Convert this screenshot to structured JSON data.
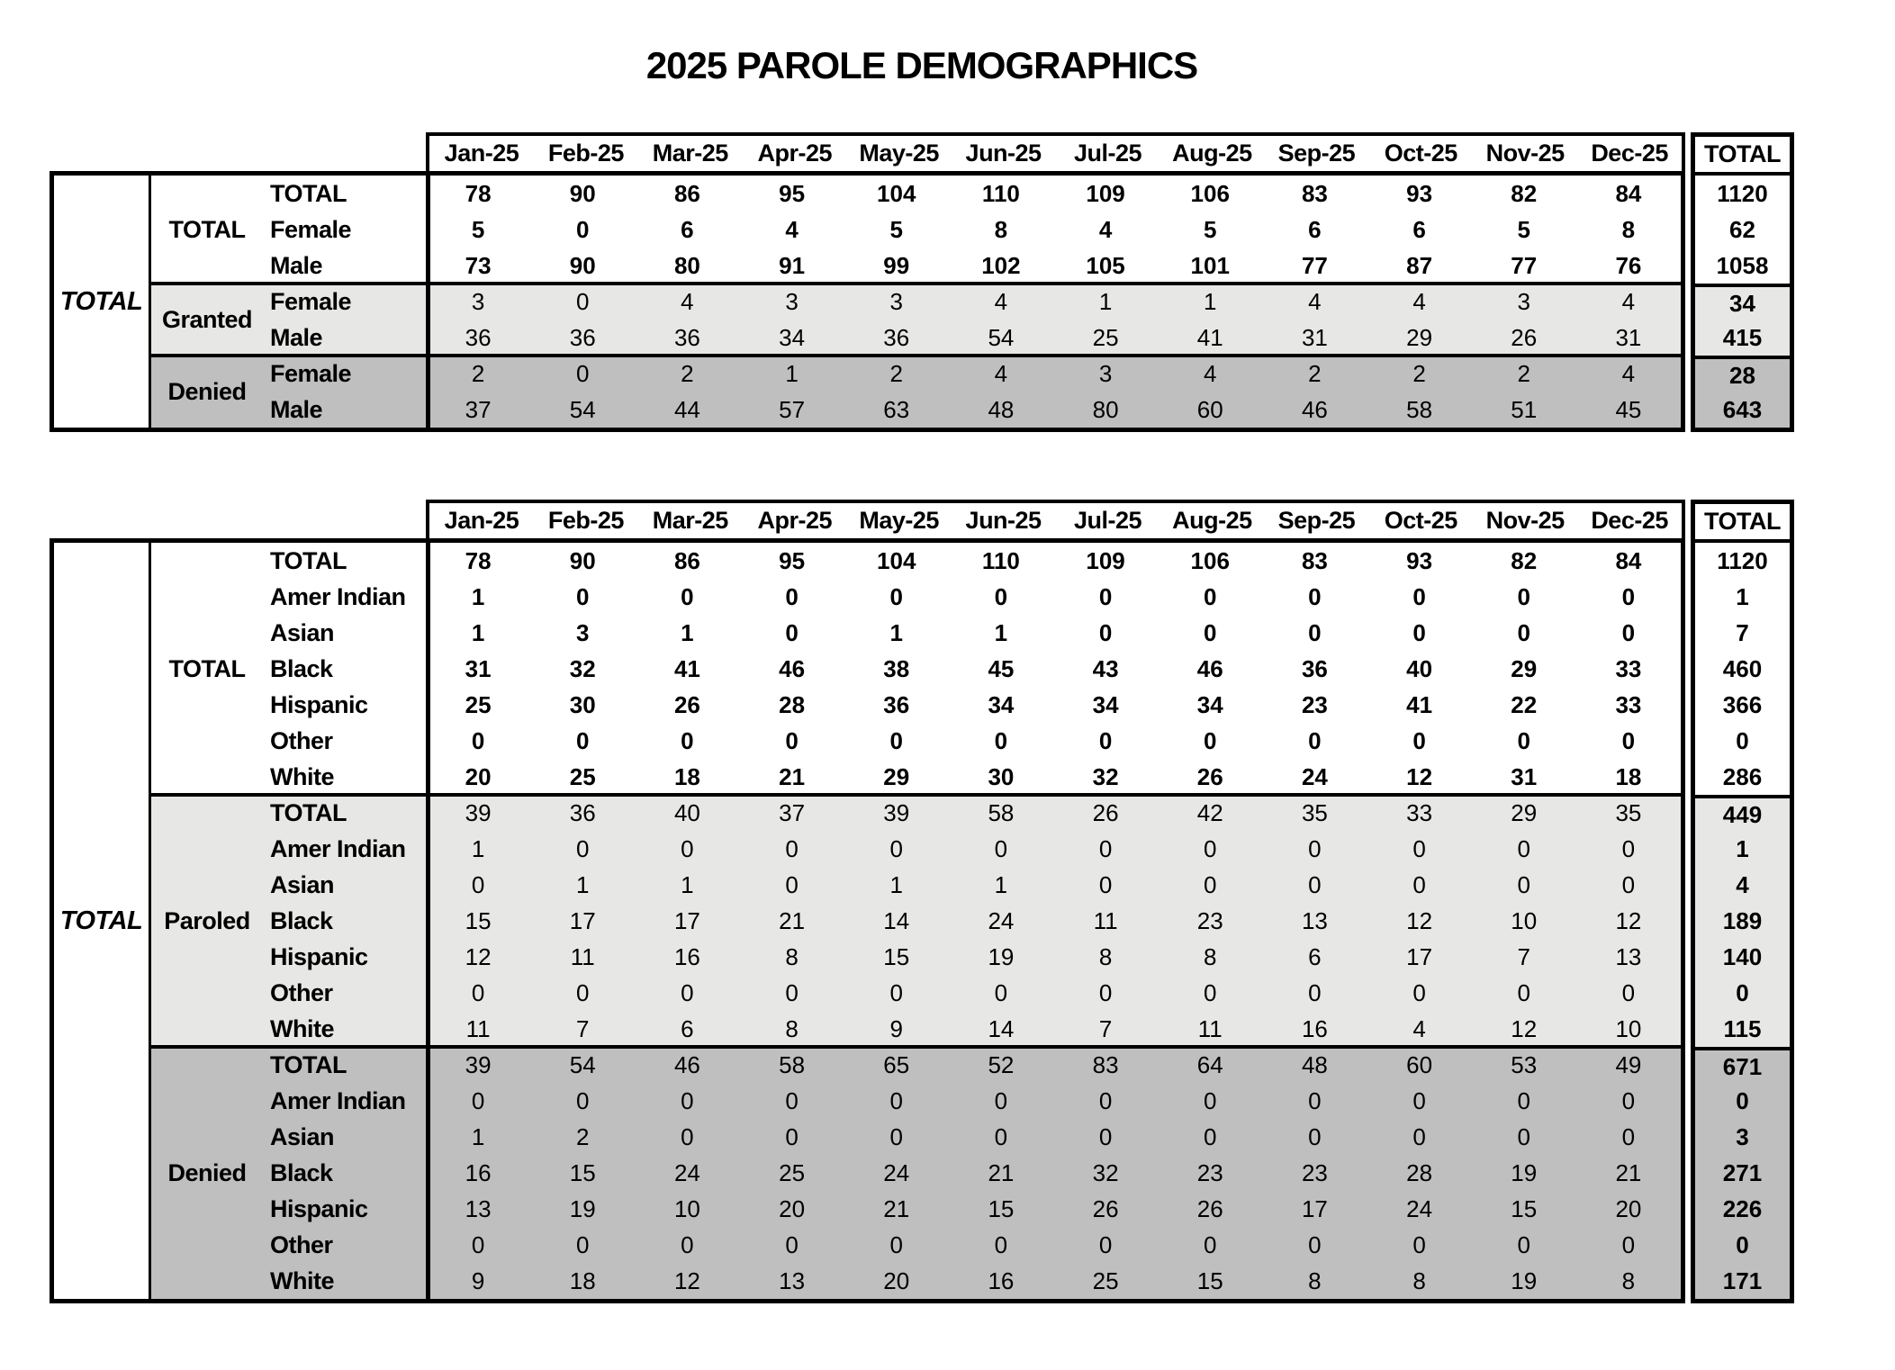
{
  "title": "2025 PAROLE DEMOGRAPHICS",
  "total_header": "TOTAL",
  "months": [
    "Jan-25",
    "Feb-25",
    "Mar-25",
    "Apr-25",
    "May-25",
    "Jun-25",
    "Jul-25",
    "Aug-25",
    "Sep-25",
    "Oct-25",
    "Nov-25",
    "Dec-25"
  ],
  "colors": {
    "page_bg": "#ffffff",
    "text": "#000000",
    "border": "#000000",
    "shade_light": "#e7e7e5",
    "shade_dark": "#bfbfbf"
  },
  "table1": {
    "side_label": "TOTAL",
    "groups": [
      {
        "label": "TOTAL",
        "shade": "none",
        "bold": true,
        "rows": [
          {
            "label": "TOTAL",
            "values": [
              78,
              90,
              86,
              95,
              104,
              110,
              109,
              106,
              83,
              93,
              82,
              84
            ],
            "total": 1120
          },
          {
            "label": "Female",
            "values": [
              5,
              0,
              6,
              4,
              5,
              8,
              4,
              5,
              6,
              6,
              5,
              8
            ],
            "total": 62
          },
          {
            "label": "Male",
            "values": [
              73,
              90,
              80,
              91,
              99,
              102,
              105,
              101,
              77,
              87,
              77,
              76
            ],
            "total": 1058
          }
        ]
      },
      {
        "label": "Granted",
        "shade": "light",
        "bold": false,
        "rows": [
          {
            "label": "Female",
            "values": [
              3,
              0,
              4,
              3,
              3,
              4,
              1,
              1,
              4,
              4,
              3,
              4
            ],
            "total": 34
          },
          {
            "label": "Male",
            "values": [
              36,
              36,
              36,
              34,
              36,
              54,
              25,
              41,
              31,
              29,
              26,
              31
            ],
            "total": 415
          }
        ]
      },
      {
        "label": "Denied",
        "shade": "dark",
        "bold": false,
        "rows": [
          {
            "label": "Female",
            "values": [
              2,
              0,
              2,
              1,
              2,
              4,
              3,
              4,
              2,
              2,
              2,
              4
            ],
            "total": 28
          },
          {
            "label": "Male",
            "values": [
              37,
              54,
              44,
              57,
              63,
              48,
              80,
              60,
              46,
              58,
              51,
              45
            ],
            "total": 643
          }
        ]
      }
    ]
  },
  "table2": {
    "side_label": "TOTAL",
    "groups": [
      {
        "label": "TOTAL",
        "shade": "none",
        "bold": true,
        "rows": [
          {
            "label": "TOTAL",
            "values": [
              78,
              90,
              86,
              95,
              104,
              110,
              109,
              106,
              83,
              93,
              82,
              84
            ],
            "total": 1120
          },
          {
            "label": "Amer Indian",
            "values": [
              1,
              0,
              0,
              0,
              0,
              0,
              0,
              0,
              0,
              0,
              0,
              0
            ],
            "total": 1
          },
          {
            "label": "Asian",
            "values": [
              1,
              3,
              1,
              0,
              1,
              1,
              0,
              0,
              0,
              0,
              0,
              0
            ],
            "total": 7
          },
          {
            "label": "Black",
            "values": [
              31,
              32,
              41,
              46,
              38,
              45,
              43,
              46,
              36,
              40,
              29,
              33
            ],
            "total": 460
          },
          {
            "label": "Hispanic",
            "values": [
              25,
              30,
              26,
              28,
              36,
              34,
              34,
              34,
              23,
              41,
              22,
              33
            ],
            "total": 366
          },
          {
            "label": "Other",
            "values": [
              0,
              0,
              0,
              0,
              0,
              0,
              0,
              0,
              0,
              0,
              0,
              0
            ],
            "total": 0
          },
          {
            "label": "White",
            "values": [
              20,
              25,
              18,
              21,
              29,
              30,
              32,
              26,
              24,
              12,
              31,
              18
            ],
            "total": 286
          }
        ]
      },
      {
        "label": "Paroled",
        "shade": "light",
        "bold": false,
        "rows": [
          {
            "label": "TOTAL",
            "values": [
              39,
              36,
              40,
              37,
              39,
              58,
              26,
              42,
              35,
              33,
              29,
              35
            ],
            "total": 449
          },
          {
            "label": "Amer Indian",
            "values": [
              1,
              0,
              0,
              0,
              0,
              0,
              0,
              0,
              0,
              0,
              0,
              0
            ],
            "total": 1
          },
          {
            "label": "Asian",
            "values": [
              0,
              1,
              1,
              0,
              1,
              1,
              0,
              0,
              0,
              0,
              0,
              0
            ],
            "total": 4
          },
          {
            "label": "Black",
            "values": [
              15,
              17,
              17,
              21,
              14,
              24,
              11,
              23,
              13,
              12,
              10,
              12
            ],
            "total": 189
          },
          {
            "label": "Hispanic",
            "values": [
              12,
              11,
              16,
              8,
              15,
              19,
              8,
              8,
              6,
              17,
              7,
              13
            ],
            "total": 140
          },
          {
            "label": "Other",
            "values": [
              0,
              0,
              0,
              0,
              0,
              0,
              0,
              0,
              0,
              0,
              0,
              0
            ],
            "total": 0
          },
          {
            "label": "White",
            "values": [
              11,
              7,
              6,
              8,
              9,
              14,
              7,
              11,
              16,
              4,
              12,
              10
            ],
            "total": 115
          }
        ]
      },
      {
        "label": "Denied",
        "shade": "dark",
        "bold": false,
        "rows": [
          {
            "label": "TOTAL",
            "values": [
              39,
              54,
              46,
              58,
              65,
              52,
              83,
              64,
              48,
              60,
              53,
              49
            ],
            "total": 671
          },
          {
            "label": "Amer Indian",
            "values": [
              0,
              0,
              0,
              0,
              0,
              0,
              0,
              0,
              0,
              0,
              0,
              0
            ],
            "total": 0
          },
          {
            "label": "Asian",
            "values": [
              1,
              2,
              0,
              0,
              0,
              0,
              0,
              0,
              0,
              0,
              0,
              0
            ],
            "total": 3
          },
          {
            "label": "Black",
            "values": [
              16,
              15,
              24,
              25,
              24,
              21,
              32,
              23,
              23,
              28,
              19,
              21
            ],
            "total": 271
          },
          {
            "label": "Hispanic",
            "values": [
              13,
              19,
              10,
              20,
              21,
              15,
              26,
              26,
              17,
              24,
              15,
              20
            ],
            "total": 226
          },
          {
            "label": "Other",
            "values": [
              0,
              0,
              0,
              0,
              0,
              0,
              0,
              0,
              0,
              0,
              0,
              0
            ],
            "total": 0
          },
          {
            "label": "White",
            "values": [
              9,
              18,
              12,
              13,
              20,
              16,
              25,
              15,
              8,
              8,
              19,
              8
            ],
            "total": 171
          }
        ]
      }
    ]
  }
}
